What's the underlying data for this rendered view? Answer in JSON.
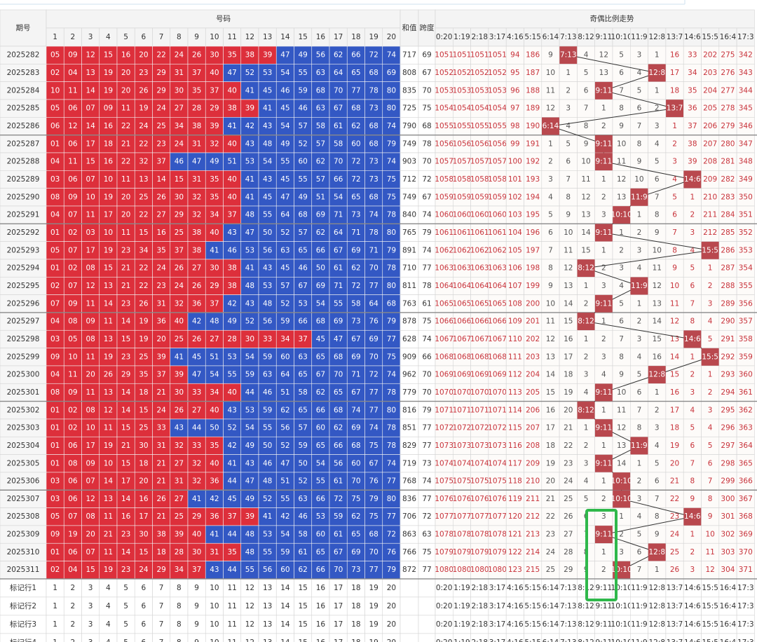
{
  "header": {
    "issue": "期号",
    "numbers_title": "号码",
    "sum": "和值",
    "span": "跨度",
    "trend_title": "奇偶比例走势",
    "numbers": [
      1,
      2,
      3,
      4,
      5,
      6,
      7,
      8,
      9,
      10,
      11,
      12,
      13,
      14,
      15,
      16,
      17,
      18,
      19,
      20
    ],
    "ratios": [
      "0:20",
      "1:19",
      "2:18",
      "3:17",
      "4:16",
      "5:15",
      "6:14",
      "7:13",
      "8:12",
      "9:11",
      "10:10",
      "11:9",
      "12:8",
      "13:7",
      "14:6",
      "15:5",
      "16:4",
      "17:3"
    ]
  },
  "rows": [
    {
      "issue": "2025282",
      "numbers": [
        "05",
        "09",
        "12",
        "15",
        "16",
        "20",
        "22",
        "24",
        "26",
        "30",
        "35",
        "38",
        "39",
        "47",
        "49",
        "56",
        "62",
        "66",
        "72",
        "74"
      ],
      "sum": 717,
      "span": 69,
      "trend": [
        1051,
        1051,
        1051,
        1051,
        94,
        186,
        9,
        "7:13",
        4,
        12,
        5,
        3,
        1,
        16,
        33,
        202,
        275,
        342
      ]
    },
    {
      "issue": "2025283",
      "numbers": [
        "02",
        "04",
        "13",
        "19",
        "20",
        "23",
        "29",
        "31",
        "37",
        "40",
        "47",
        "52",
        "53",
        "54",
        "55",
        "63",
        "64",
        "65",
        "68",
        "69"
      ],
      "sum": 808,
      "span": 67,
      "trend": [
        1052,
        1052,
        1052,
        1052,
        95,
        187,
        10,
        1,
        5,
        13,
        6,
        4,
        "12:8",
        17,
        34,
        203,
        276,
        343
      ]
    },
    {
      "issue": "2025284",
      "numbers": [
        "10",
        "11",
        "14",
        "19",
        "20",
        "26",
        "29",
        "30",
        "35",
        "37",
        "40",
        "41",
        "45",
        "46",
        "59",
        "68",
        "70",
        "77",
        "78",
        "80"
      ],
      "sum": 835,
      "span": 70,
      "trend": [
        1053,
        1053,
        1053,
        1053,
        96,
        188,
        11,
        2,
        6,
        "9:11",
        7,
        5,
        1,
        18,
        35,
        204,
        277,
        344
      ]
    },
    {
      "issue": "2025285",
      "numbers": [
        "05",
        "06",
        "07",
        "09",
        "11",
        "19",
        "24",
        "27",
        "28",
        "29",
        "38",
        "39",
        "41",
        "45",
        "46",
        "63",
        "67",
        "68",
        "73",
        "80"
      ],
      "sum": 725,
      "span": 75,
      "trend": [
        1054,
        1054,
        1054,
        1054,
        97,
        189,
        12,
        3,
        7,
        1,
        8,
        6,
        2,
        "13:7",
        36,
        205,
        278,
        345
      ]
    },
    {
      "issue": "2025286",
      "numbers": [
        "06",
        "12",
        "14",
        "16",
        "22",
        "24",
        "25",
        "34",
        "38",
        "39",
        "41",
        "42",
        "43",
        "54",
        "57",
        "58",
        "61",
        "62",
        "68",
        "74"
      ],
      "sum": 790,
      "span": 68,
      "trend": [
        1055,
        1055,
        1055,
        1055,
        98,
        190,
        "6:14",
        4,
        8,
        2,
        9,
        7,
        3,
        1,
        37,
        206,
        279,
        346
      ]
    },
    {
      "issue": "2025287",
      "numbers": [
        "01",
        "06",
        "17",
        "18",
        "21",
        "22",
        "23",
        "24",
        "31",
        "32",
        "40",
        "43",
        "48",
        "49",
        "52",
        "57",
        "58",
        "60",
        "68",
        "79"
      ],
      "sum": 749,
      "span": 78,
      "trend": [
        1056,
        1056,
        1056,
        1056,
        99,
        191,
        1,
        5,
        9,
        "9:11",
        10,
        8,
        4,
        2,
        38,
        207,
        280,
        347
      ]
    },
    {
      "issue": "2025288",
      "numbers": [
        "04",
        "11",
        "15",
        "16",
        "22",
        "32",
        "37",
        "46",
        "47",
        "49",
        "51",
        "53",
        "54",
        "55",
        "60",
        "62",
        "70",
        "72",
        "73",
        "74"
      ],
      "sum": 903,
      "span": 70,
      "trend": [
        1057,
        1057,
        1057,
        1057,
        100,
        192,
        2,
        6,
        10,
        "9:11",
        11,
        9,
        5,
        3,
        39,
        208,
        281,
        348
      ]
    },
    {
      "issue": "2025289",
      "numbers": [
        "03",
        "06",
        "07",
        "10",
        "11",
        "13",
        "14",
        "15",
        "31",
        "35",
        "40",
        "41",
        "43",
        "45",
        "55",
        "57",
        "66",
        "72",
        "73",
        "75"
      ],
      "sum": 712,
      "span": 72,
      "trend": [
        1058,
        1058,
        1058,
        1058,
        101,
        193,
        3,
        7,
        11,
        1,
        12,
        10,
        6,
        4,
        "14:6",
        209,
        282,
        349
      ]
    },
    {
      "issue": "2025290",
      "numbers": [
        "08",
        "09",
        "10",
        "19",
        "20",
        "25",
        "26",
        "30",
        "32",
        "35",
        "40",
        "41",
        "45",
        "47",
        "49",
        "51",
        "54",
        "65",
        "68",
        "75"
      ],
      "sum": 749,
      "span": 67,
      "trend": [
        1059,
        1059,
        1059,
        1059,
        102,
        194,
        4,
        8,
        12,
        2,
        13,
        "11:9",
        7,
        5,
        1,
        210,
        283,
        350
      ]
    },
    {
      "issue": "2025291",
      "numbers": [
        "04",
        "07",
        "11",
        "17",
        "20",
        "22",
        "27",
        "29",
        "32",
        "34",
        "37",
        "48",
        "55",
        "64",
        "68",
        "69",
        "71",
        "73",
        "74",
        "78"
      ],
      "sum": 840,
      "span": 74,
      "trend": [
        1060,
        1060,
        1060,
        1060,
        103,
        195,
        5,
        9,
        13,
        3,
        "10:10",
        1,
        8,
        6,
        2,
        211,
        284,
        351
      ]
    },
    {
      "issue": "2025292",
      "numbers": [
        "01",
        "02",
        "03",
        "10",
        "11",
        "15",
        "16",
        "25",
        "38",
        "40",
        "43",
        "47",
        "50",
        "52",
        "57",
        "62",
        "64",
        "71",
        "78",
        "80"
      ],
      "sum": 765,
      "span": 79,
      "trend": [
        1061,
        1061,
        1061,
        1061,
        104,
        196,
        6,
        10,
        14,
        "9:11",
        1,
        2,
        9,
        7,
        3,
        212,
        285,
        352
      ]
    },
    {
      "issue": "2025293",
      "numbers": [
        "05",
        "07",
        "17",
        "19",
        "23",
        "34",
        "35",
        "37",
        "38",
        "41",
        "46",
        "53",
        "56",
        "63",
        "65",
        "66",
        "67",
        "69",
        "71",
        "79"
      ],
      "sum": 891,
      "span": 74,
      "trend": [
        1062,
        1062,
        1062,
        1062,
        105,
        197,
        7,
        11,
        15,
        1,
        2,
        3,
        10,
        8,
        4,
        "15:5",
        286,
        353
      ]
    },
    {
      "issue": "2025294",
      "numbers": [
        "01",
        "02",
        "08",
        "15",
        "21",
        "22",
        "24",
        "26",
        "27",
        "30",
        "38",
        "41",
        "43",
        "45",
        "46",
        "50",
        "61",
        "62",
        "70",
        "78"
      ],
      "sum": 710,
      "span": 77,
      "trend": [
        1063,
        1063,
        1063,
        1063,
        106,
        198,
        8,
        12,
        "8:12",
        2,
        3,
        4,
        11,
        9,
        5,
        1,
        287,
        354
      ]
    },
    {
      "issue": "2025295",
      "numbers": [
        "02",
        "07",
        "12",
        "13",
        "21",
        "22",
        "23",
        "24",
        "26",
        "29",
        "38",
        "48",
        "53",
        "57",
        "67",
        "69",
        "71",
        "72",
        "77",
        "80"
      ],
      "sum": 811,
      "span": 78,
      "trend": [
        1064,
        1064,
        1064,
        1064,
        107,
        199,
        9,
        13,
        1,
        3,
        4,
        "11:9",
        12,
        10,
        6,
        2,
        288,
        355
      ]
    },
    {
      "issue": "2025296",
      "numbers": [
        "07",
        "09",
        "11",
        "14",
        "23",
        "26",
        "31",
        "32",
        "36",
        "37",
        "42",
        "43",
        "48",
        "52",
        "53",
        "54",
        "55",
        "58",
        "64",
        "68"
      ],
      "sum": 763,
      "span": 61,
      "trend": [
        1065,
        1065,
        1065,
        1065,
        108,
        200,
        10,
        14,
        2,
        "9:11",
        5,
        1,
        13,
        11,
        7,
        3,
        289,
        356
      ]
    },
    {
      "issue": "2025297",
      "numbers": [
        "04",
        "08",
        "09",
        "11",
        "14",
        "19",
        "36",
        "40",
        "42",
        "48",
        "49",
        "52",
        "56",
        "59",
        "66",
        "68",
        "69",
        "73",
        "76",
        "79"
      ],
      "sum": 878,
      "span": 75,
      "trend": [
        1066,
        1066,
        1066,
        1066,
        109,
        201,
        11,
        15,
        "8:12",
        1,
        6,
        2,
        14,
        12,
        8,
        4,
        290,
        357
      ]
    },
    {
      "issue": "2025298",
      "numbers": [
        "03",
        "05",
        "08",
        "13",
        "15",
        "19",
        "20",
        "25",
        "26",
        "27",
        "28",
        "30",
        "33",
        "34",
        "37",
        "45",
        "47",
        "67",
        "69",
        "77"
      ],
      "sum": 628,
      "span": 74,
      "trend": [
        1067,
        1067,
        1067,
        1067,
        110,
        202,
        12,
        16,
        1,
        2,
        7,
        3,
        15,
        13,
        "14:6",
        5,
        291,
        358
      ]
    },
    {
      "issue": "2025299",
      "numbers": [
        "09",
        "10",
        "11",
        "19",
        "23",
        "25",
        "39",
        "41",
        "45",
        "51",
        "53",
        "54",
        "59",
        "60",
        "63",
        "65",
        "68",
        "69",
        "70",
        "75"
      ],
      "sum": 909,
      "span": 66,
      "trend": [
        1068,
        1068,
        1068,
        1068,
        111,
        203,
        13,
        17,
        2,
        3,
        8,
        4,
        16,
        14,
        1,
        "15:5",
        292,
        359
      ]
    },
    {
      "issue": "2025300",
      "numbers": [
        "04",
        "11",
        "20",
        "26",
        "29",
        "35",
        "37",
        "39",
        "47",
        "54",
        "55",
        "59",
        "63",
        "64",
        "65",
        "67",
        "70",
        "71",
        "72",
        "74"
      ],
      "sum": 962,
      "span": 70,
      "trend": [
        1069,
        1069,
        1069,
        1069,
        112,
        204,
        14,
        18,
        3,
        4,
        9,
        5,
        "12:8",
        15,
        2,
        1,
        293,
        360
      ]
    },
    {
      "issue": "2025301",
      "numbers": [
        "08",
        "09",
        "11",
        "13",
        "14",
        "18",
        "21",
        "30",
        "33",
        "34",
        "40",
        "44",
        "46",
        "51",
        "58",
        "62",
        "65",
        "67",
        "77",
        "78"
      ],
      "sum": 779,
      "span": 70,
      "trend": [
        1070,
        1070,
        1070,
        1070,
        113,
        205,
        15,
        19,
        4,
        "9:11",
        10,
        6,
        1,
        16,
        3,
        2,
        294,
        361
      ]
    },
    {
      "issue": "2025302",
      "numbers": [
        "01",
        "02",
        "08",
        "12",
        "14",
        "15",
        "24",
        "26",
        "27",
        "40",
        "43",
        "53",
        "59",
        "62",
        "65",
        "66",
        "68",
        "74",
        "77",
        "80"
      ],
      "sum": 816,
      "span": 79,
      "trend": [
        1071,
        1071,
        1071,
        1071,
        114,
        206,
        16,
        20,
        "8:12",
        1,
        11,
        7,
        2,
        17,
        4,
        3,
        295,
        362
      ]
    },
    {
      "issue": "2025303",
      "numbers": [
        "01",
        "02",
        "10",
        "11",
        "15",
        "25",
        "33",
        "43",
        "44",
        "50",
        "52",
        "54",
        "55",
        "56",
        "57",
        "60",
        "62",
        "69",
        "74",
        "78"
      ],
      "sum": 851,
      "span": 77,
      "trend": [
        1072,
        1072,
        1072,
        1072,
        115,
        207,
        17,
        21,
        1,
        "9:11",
        12,
        8,
        3,
        18,
        5,
        4,
        296,
        363
      ]
    },
    {
      "issue": "2025304",
      "numbers": [
        "01",
        "06",
        "17",
        "19",
        "21",
        "30",
        "31",
        "32",
        "33",
        "35",
        "42",
        "49",
        "50",
        "52",
        "59",
        "65",
        "66",
        "68",
        "75",
        "78"
      ],
      "sum": 829,
      "span": 77,
      "trend": [
        1073,
        1073,
        1073,
        1073,
        116,
        208,
        18,
        22,
        2,
        1,
        13,
        "11:9",
        4,
        19,
        6,
        5,
        297,
        364
      ]
    },
    {
      "issue": "2025305",
      "numbers": [
        "01",
        "08",
        "09",
        "10",
        "15",
        "18",
        "21",
        "27",
        "32",
        "40",
        "41",
        "43",
        "46",
        "47",
        "50",
        "54",
        "56",
        "60",
        "67",
        "74"
      ],
      "sum": 719,
      "span": 73,
      "trend": [
        1074,
        1074,
        1074,
        1074,
        117,
        209,
        19,
        23,
        3,
        "9:11",
        14,
        1,
        5,
        20,
        7,
        6,
        298,
        365
      ]
    },
    {
      "issue": "2025306",
      "numbers": [
        "03",
        "06",
        "07",
        "14",
        "17",
        "20",
        "21",
        "31",
        "32",
        "36",
        "44",
        "47",
        "48",
        "51",
        "52",
        "55",
        "61",
        "70",
        "76",
        "77"
      ],
      "sum": 768,
      "span": 74,
      "trend": [
        1075,
        1075,
        1075,
        1075,
        118,
        210,
        20,
        24,
        4,
        1,
        "10:10",
        2,
        6,
        21,
        8,
        7,
        299,
        366
      ]
    },
    {
      "issue": "2025307",
      "numbers": [
        "03",
        "06",
        "12",
        "13",
        "14",
        "16",
        "26",
        "27",
        "41",
        "42",
        "45",
        "49",
        "52",
        "55",
        "63",
        "66",
        "72",
        "75",
        "79",
        "80"
      ],
      "sum": 836,
      "span": 77,
      "trend": [
        1076,
        1076,
        1076,
        1076,
        119,
        211,
        21,
        25,
        5,
        2,
        "10:10",
        3,
        7,
        22,
        9,
        8,
        300,
        367
      ]
    },
    {
      "issue": "2025308",
      "numbers": [
        "05",
        "07",
        "08",
        "11",
        "16",
        "17",
        "21",
        "25",
        "29",
        "36",
        "37",
        "39",
        "41",
        "42",
        "46",
        "53",
        "59",
        "62",
        "75",
        "77"
      ],
      "sum": 706,
      "span": 72,
      "trend": [
        1077,
        1077,
        1077,
        1077,
        120,
        212,
        22,
        26,
        6,
        3,
        1,
        4,
        8,
        23,
        "14:6",
        9,
        301,
        368
      ]
    },
    {
      "issue": "2025309",
      "numbers": [
        "09",
        "19",
        "20",
        "21",
        "23",
        "30",
        "38",
        "39",
        "40",
        "41",
        "44",
        "48",
        "53",
        "54",
        "58",
        "60",
        "61",
        "65",
        "68",
        "72"
      ],
      "sum": 863,
      "span": 63,
      "trend": [
        1078,
        1078,
        1078,
        1078,
        121,
        213,
        23,
        27,
        7,
        "9:11",
        2,
        5,
        9,
        24,
        1,
        10,
        302,
        369
      ]
    },
    {
      "issue": "2025310",
      "numbers": [
        "01",
        "06",
        "07",
        "11",
        "14",
        "15",
        "18",
        "28",
        "30",
        "31",
        "35",
        "48",
        "55",
        "59",
        "61",
        "65",
        "67",
        "69",
        "70",
        "76"
      ],
      "sum": 766,
      "span": 75,
      "trend": [
        1079,
        1079,
        1079,
        1079,
        122,
        214,
        24,
        28,
        8,
        1,
        3,
        6,
        "12:8",
        25,
        2,
        11,
        303,
        370
      ]
    },
    {
      "issue": "2025311",
      "numbers": [
        "02",
        "04",
        "15",
        "19",
        "23",
        "24",
        "29",
        "34",
        "37",
        "43",
        "44",
        "55",
        "56",
        "60",
        "62",
        "66",
        "70",
        "73",
        "77",
        "79"
      ],
      "sum": 872,
      "span": 77,
      "trend": [
        1080,
        1080,
        1080,
        1080,
        123,
        215,
        25,
        29,
        9,
        2,
        "10:10",
        7,
        1,
        26,
        3,
        12,
        304,
        371
      ]
    }
  ],
  "footer": [
    {
      "label": "标记行1"
    },
    {
      "label": "标记行2"
    },
    {
      "label": "标记行3"
    },
    {
      "label": "标记行4"
    }
  ]
}
